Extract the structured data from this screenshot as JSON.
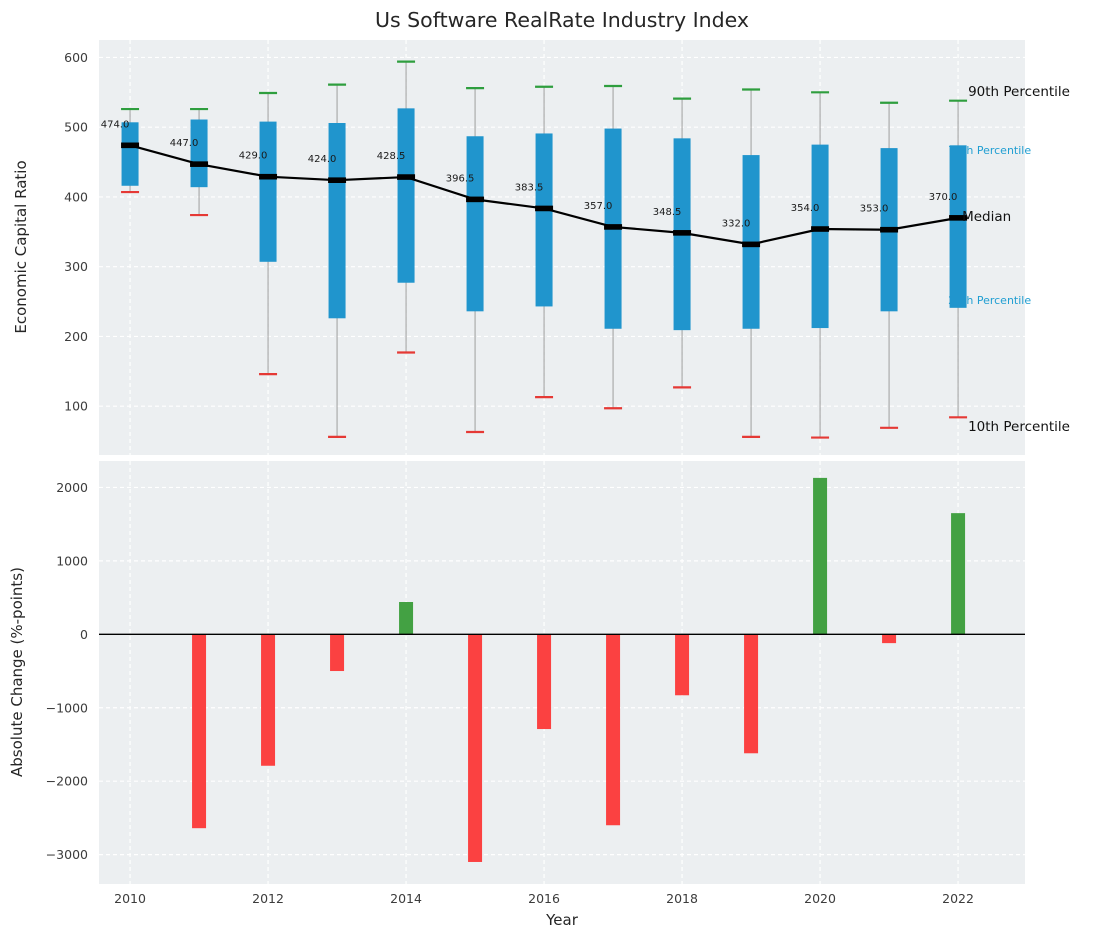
{
  "title": "Us Software RealRate Industry Index",
  "colors": {
    "panel_bg": "#eceff1",
    "grid": "#ffffff",
    "box": "#2095cd",
    "whisker": "#9e9e9e",
    "p90_cap": "#2e9e3e",
    "p10_cap": "#e53935",
    "median": "#000000",
    "bar_positive": "#43a143",
    "bar_negative": "#fb4141",
    "tick": "#3c3c3c",
    "label": "#262626",
    "annotation_blue": "#1f9ed2",
    "annotation_black": "#111111"
  },
  "chart_data": [
    {
      "type": "boxplot",
      "title": "Us Software RealRate Industry Index",
      "ylabel": "Economic Capital Ratio",
      "xlim": [
        2009.55,
        2022.97
      ],
      "ylim": [
        30,
        625
      ],
      "yticks": [
        100,
        200,
        300,
        400,
        500,
        600
      ],
      "grid": true,
      "legend_position": "right-annotations",
      "x": [
        2010,
        2011,
        2012,
        2013,
        2014,
        2015,
        2016,
        2017,
        2018,
        2019,
        2020,
        2021,
        2022
      ],
      "series": {
        "median": [
          474.0,
          447.0,
          429.0,
          424.0,
          428.5,
          396.5,
          383.5,
          357.0,
          348.5,
          332.0,
          354.0,
          353.0,
          370.0
        ],
        "p75": [
          507,
          511,
          508,
          506,
          527,
          487,
          491,
          498,
          484,
          460,
          475,
          470,
          474
        ],
        "p25": [
          416,
          414,
          307,
          226,
          277,
          236,
          243,
          211,
          209,
          211,
          212,
          236,
          241
        ],
        "p90": [
          526,
          526,
          549,
          561,
          594,
          556,
          558,
          559,
          541,
          554,
          550,
          535,
          538
        ],
        "p10": [
          407,
          374,
          146,
          56,
          177,
          63,
          113,
          97,
          127,
          56,
          55,
          69,
          84
        ]
      },
      "annotations": [
        {
          "label": "90th Percentile",
          "value": 551,
          "dx": 10,
          "size": 13.5,
          "color": "#111111",
          "layer": "front"
        },
        {
          "label": "75th Percentile",
          "value": 467,
          "dx": -10,
          "size": 11,
          "color": "#1f9ed2",
          "layer": "back"
        },
        {
          "label": "Median",
          "value": 372,
          "dx": 4,
          "size": 13.5,
          "color": "#111111",
          "layer": "front"
        },
        {
          "label": "25th Percentile",
          "value": 252,
          "dx": -10,
          "size": 11,
          "color": "#1f9ed2",
          "layer": "back"
        },
        {
          "label": "10th Percentile",
          "value": 71,
          "dx": 10,
          "size": 13.5,
          "color": "#111111",
          "layer": "front"
        }
      ]
    },
    {
      "type": "bar",
      "ylabel": "Absolute Change (%-points)",
      "xlabel": "Year",
      "xlim": [
        2009.55,
        2022.97
      ],
      "ylim": [
        -3400,
        2360
      ],
      "yticks": [
        -3000,
        -2000,
        -1000,
        0,
        1000,
        2000
      ],
      "xticks": [
        2010,
        2012,
        2014,
        2016,
        2018,
        2020,
        2022
      ],
      "grid": true,
      "x": [
        2011,
        2012,
        2013,
        2014,
        2015,
        2016,
        2017,
        2018,
        2019,
        2020,
        2021,
        2022
      ],
      "values": [
        -2640,
        -1790,
        -500,
        440,
        -3100,
        -1290,
        -2600,
        -830,
        -1620,
        2130,
        -120,
        1650
      ]
    }
  ]
}
